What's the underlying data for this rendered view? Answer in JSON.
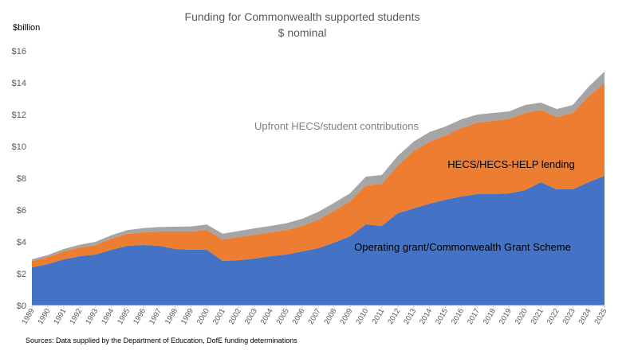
{
  "chart_data": {
    "type": "area",
    "stacked": true,
    "title": "Funding for Commonwealth supported students",
    "subtitle": "$ nominal",
    "ylabel": "$billion",
    "source": "Sources: Data supplied by the Department of Education, DofE funding determinations",
    "ylim": [
      0,
      16
    ],
    "y_ticks": [
      "$0",
      "$2",
      "$4",
      "$6",
      "$8",
      "$10",
      "$12",
      "$14",
      "$16"
    ],
    "grid": false,
    "x": [
      "1989",
      "1990",
      "1991",
      "1992",
      "1993",
      "1994",
      "1995",
      "1996",
      "1997",
      "1998",
      "1999",
      "2000",
      "2001",
      "2002",
      "2003",
      "2004",
      "2005",
      "2006",
      "2007",
      "2008",
      "2009",
      "2010",
      "2011",
      "2012",
      "2013",
      "2014",
      "2015",
      "2016",
      "2017",
      "2018",
      "2019",
      "2020",
      "2021",
      "2022",
      "2023",
      "2024",
      "2025"
    ],
    "series": [
      {
        "name": "Operating grant/Commonwealth Grant Scheme",
        "color": "#4472c4",
        "label_color": "#000000",
        "values": [
          2.4,
          2.6,
          2.9,
          3.1,
          3.2,
          3.5,
          3.75,
          3.8,
          3.75,
          3.55,
          3.5,
          3.5,
          2.8,
          2.85,
          2.95,
          3.1,
          3.2,
          3.4,
          3.6,
          3.95,
          4.35,
          5.1,
          5.0,
          5.8,
          6.1,
          6.4,
          6.65,
          6.85,
          7.0,
          7.0,
          7.05,
          7.25,
          7.75,
          7.3,
          7.3,
          7.75,
          8.15
        ]
      },
      {
        "name": "HECS/HECS-HELP lending",
        "color": "#ed7d31",
        "label_color": "#000000",
        "values": [
          0.4,
          0.45,
          0.5,
          0.55,
          0.6,
          0.7,
          0.75,
          0.8,
          0.9,
          1.1,
          1.15,
          1.25,
          1.35,
          1.45,
          1.5,
          1.5,
          1.55,
          1.6,
          1.8,
          2.0,
          2.2,
          2.45,
          2.65,
          3.0,
          3.6,
          3.9,
          4.05,
          4.3,
          4.5,
          4.6,
          4.7,
          4.85,
          4.55,
          4.55,
          4.8,
          5.4,
          5.85
        ]
      },
      {
        "name": "Upfront HECS/student contributions",
        "color": "#a5a5a5",
        "label_color": "#808080",
        "values": [
          0.1,
          0.12,
          0.15,
          0.17,
          0.2,
          0.22,
          0.24,
          0.26,
          0.28,
          0.3,
          0.32,
          0.34,
          0.36,
          0.38,
          0.4,
          0.4,
          0.42,
          0.45,
          0.48,
          0.5,
          0.5,
          0.55,
          0.55,
          0.6,
          0.6,
          0.6,
          0.55,
          0.55,
          0.5,
          0.5,
          0.45,
          0.5,
          0.45,
          0.5,
          0.5,
          0.6,
          0.7
        ]
      }
    ]
  }
}
